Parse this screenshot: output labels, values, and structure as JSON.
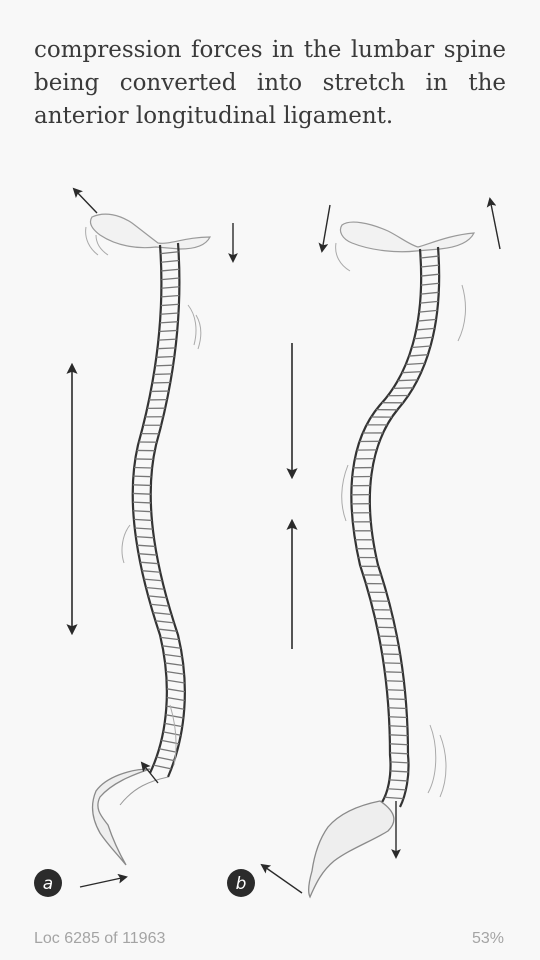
{
  "reader": {
    "paragraph_lines": [
      "compression forces in the lumbar spine",
      "being converted into stretch in the",
      "anterior longitudinal ligament."
    ],
    "location": "Loc 6285 of 11963",
    "progress_label": "53%",
    "progress_fraction": 0.53
  },
  "figure": {
    "panel_a_label": "a",
    "panel_b_label": "b"
  }
}
